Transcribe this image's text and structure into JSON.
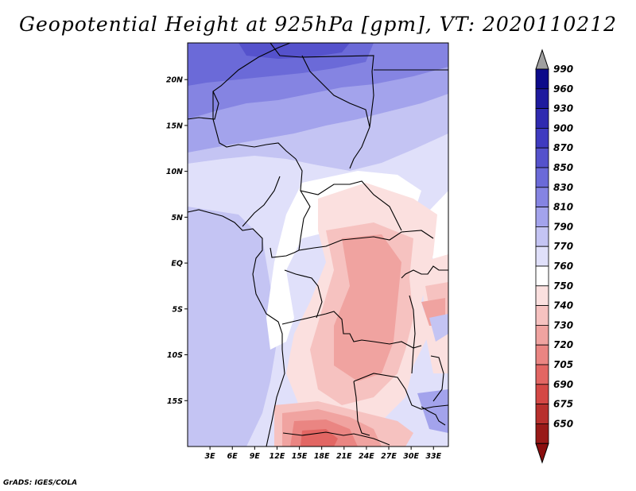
{
  "title": "Geopotential Height at 925hPa [gpm], VT: 2020110212",
  "credit": "GrADS: IGES/COLA",
  "map": {
    "lon_range": [
      0,
      35
    ],
    "lat_range": [
      -20,
      24
    ],
    "lat_ticks": [
      {
        "value": 20,
        "label": "20N"
      },
      {
        "value": 15,
        "label": "15N"
      },
      {
        "value": 10,
        "label": "10N"
      },
      {
        "value": 5,
        "label": "5N"
      },
      {
        "value": 0,
        "label": "EQ"
      },
      {
        "value": -5,
        "label": "5S"
      },
      {
        "value": -10,
        "label": "10S"
      },
      {
        "value": -15,
        "label": "15S"
      }
    ],
    "lon_ticks": [
      {
        "value": 3,
        "label": "3E"
      },
      {
        "value": 6,
        "label": "6E"
      },
      {
        "value": 9,
        "label": "9E"
      },
      {
        "value": 12,
        "label": "12E"
      },
      {
        "value": 15,
        "label": "15E"
      },
      {
        "value": 18,
        "label": "18E"
      },
      {
        "value": 21,
        "label": "21E"
      },
      {
        "value": 24,
        "label": "24E"
      },
      {
        "value": 27,
        "label": "27E"
      },
      {
        "value": 30,
        "label": "30E"
      },
      {
        "value": 33,
        "label": "33E"
      }
    ]
  },
  "colorbar": {
    "labels": [
      "990",
      "960",
      "930",
      "900",
      "870",
      "850",
      "830",
      "810",
      "790",
      "770",
      "760",
      "750",
      "740",
      "730",
      "720",
      "705",
      "690",
      "675",
      "650"
    ],
    "colors": [
      "#0c0a8a",
      "#1e1a9e",
      "#2f2ab0",
      "#3f3bc0",
      "#5552cc",
      "#6b6ad8",
      "#8584e2",
      "#a3a3ec",
      "#c4c4f3",
      "#e0e0fa",
      "#ffffff",
      "#fbe0df",
      "#f6c2c0",
      "#f0a3a0",
      "#ea8582",
      "#e26663",
      "#d44845",
      "#b8302d",
      "#991a18"
    ],
    "top_triangle_color": "#a0a0a0",
    "bottom_triangle_color": "#8a0e0e"
  }
}
